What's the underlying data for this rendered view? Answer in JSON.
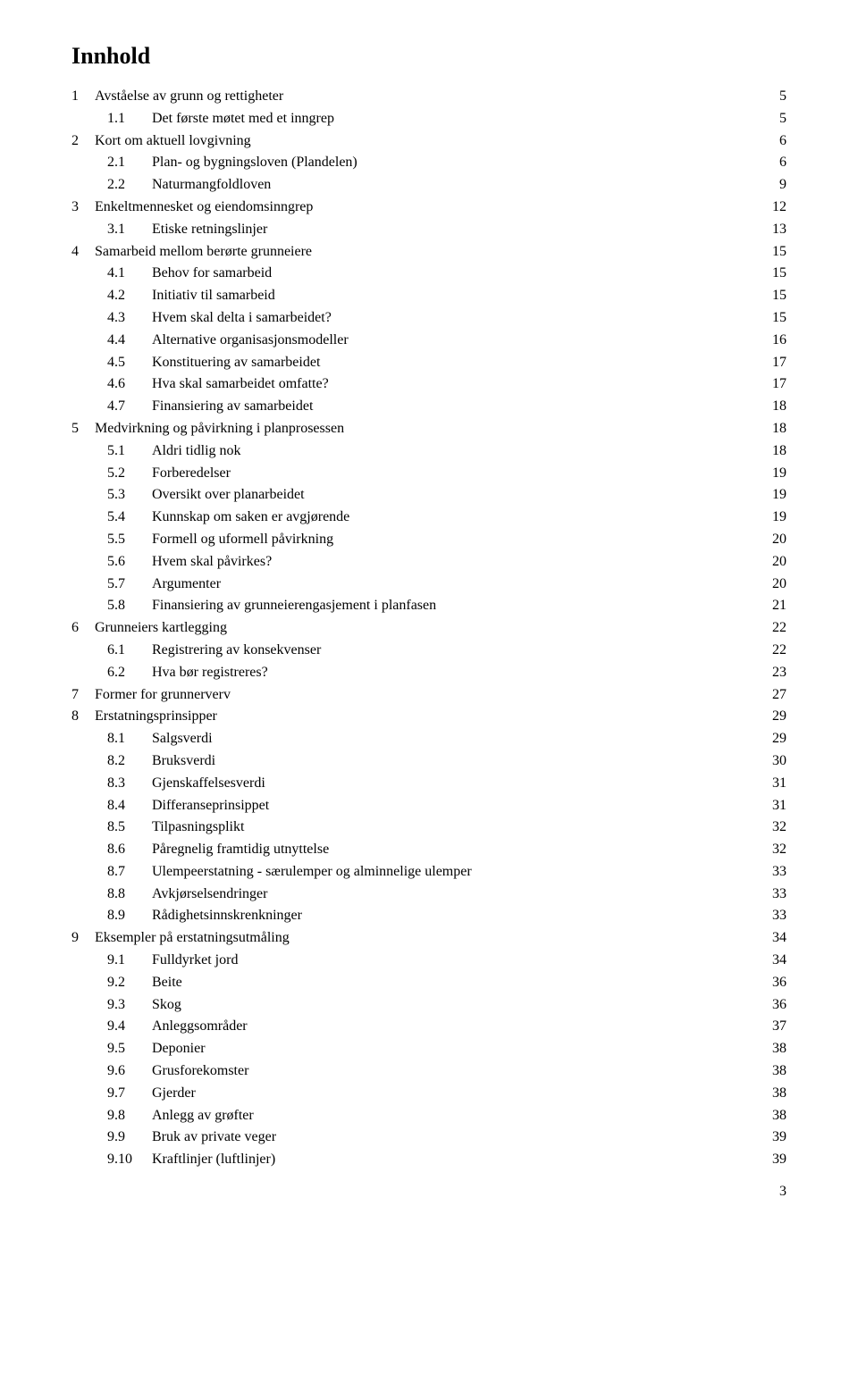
{
  "title": "Innhold",
  "page_number": "3",
  "colors": {
    "text": "#000000",
    "background": "#ffffff"
  },
  "typography": {
    "family": "Times New Roman",
    "title_size_pt": 20,
    "body_size_pt": 12
  },
  "toc": [
    {
      "level": 0,
      "num": "1",
      "label": "Avståelse av grunn og rettigheter",
      "page": "5"
    },
    {
      "level": 1,
      "num": "1.1",
      "label": "Det første møtet med et inngrep",
      "page": "5"
    },
    {
      "level": 0,
      "num": "2",
      "label": "Kort om aktuell lovgivning",
      "page": "6"
    },
    {
      "level": 1,
      "num": "2.1",
      "label": "Plan- og bygningsloven (Plandelen)",
      "page": "6"
    },
    {
      "level": 1,
      "num": "2.2",
      "label": "Naturmangfoldloven",
      "page": "9"
    },
    {
      "level": 0,
      "num": "3",
      "label": "Enkeltmennesket og eiendomsinngrep",
      "page": "12"
    },
    {
      "level": 1,
      "num": "3.1",
      "label": "Etiske retningslinjer",
      "page": "13"
    },
    {
      "level": 0,
      "num": "4",
      "label": "Samarbeid mellom berørte grunneiere",
      "page": "15"
    },
    {
      "level": 1,
      "num": "4.1",
      "label": "Behov for samarbeid",
      "page": "15"
    },
    {
      "level": 1,
      "num": "4.2",
      "label": "Initiativ til samarbeid",
      "page": "15"
    },
    {
      "level": 1,
      "num": "4.3",
      "label": "Hvem skal delta i samarbeidet?",
      "page": "15"
    },
    {
      "level": 1,
      "num": "4.4",
      "label": "Alternative organisasjonsmodeller",
      "page": "16"
    },
    {
      "level": 1,
      "num": "4.5",
      "label": "Konstituering av samarbeidet",
      "page": "17"
    },
    {
      "level": 1,
      "num": "4.6",
      "label": "Hva skal samarbeidet omfatte?",
      "page": "17"
    },
    {
      "level": 1,
      "num": "4.7",
      "label": "Finansiering av samarbeidet",
      "page": "18"
    },
    {
      "level": 0,
      "num": "5",
      "label": "Medvirkning og påvirkning i planprosessen",
      "page": "18"
    },
    {
      "level": 1,
      "num": "5.1",
      "label": "Aldri tidlig nok",
      "page": "18"
    },
    {
      "level": 1,
      "num": "5.2",
      "label": "Forberedelser",
      "page": "19"
    },
    {
      "level": 1,
      "num": "5.3",
      "label": "Oversikt over planarbeidet",
      "page": "19"
    },
    {
      "level": 1,
      "num": "5.4",
      "label": "Kunnskap om saken er avgjørende",
      "page": "19"
    },
    {
      "level": 1,
      "num": "5.5",
      "label": "Formell og uformell påvirkning",
      "page": "20"
    },
    {
      "level": 1,
      "num": "5.6",
      "label": "Hvem skal påvirkes?",
      "page": "20"
    },
    {
      "level": 1,
      "num": "5.7",
      "label": "Argumenter",
      "page": "20"
    },
    {
      "level": 1,
      "num": "5.8",
      "label": "Finansiering av grunneierengasjement i planfasen",
      "page": "21"
    },
    {
      "level": 0,
      "num": "6",
      "label": "Grunneiers kartlegging",
      "page": "22"
    },
    {
      "level": 1,
      "num": "6.1",
      "label": "Registrering av konsekvenser",
      "page": "22"
    },
    {
      "level": 1,
      "num": "6.2",
      "label": "Hva bør registreres?",
      "page": "23"
    },
    {
      "level": 0,
      "num": "7",
      "label": "Former for grunnerverv",
      "page": "27"
    },
    {
      "level": 0,
      "num": "8",
      "label": "Erstatningsprinsipper",
      "page": "29"
    },
    {
      "level": 1,
      "num": "8.1",
      "label": "Salgsverdi",
      "page": "29"
    },
    {
      "level": 1,
      "num": "8.2",
      "label": "Bruksverdi",
      "page": "30"
    },
    {
      "level": 1,
      "num": "8.3",
      "label": "Gjenskaffelsesverdi",
      "page": "31"
    },
    {
      "level": 1,
      "num": "8.4",
      "label": "Differanseprinsippet",
      "page": "31"
    },
    {
      "level": 1,
      "num": "8.5",
      "label": "Tilpasningsplikt",
      "page": "32"
    },
    {
      "level": 1,
      "num": "8.6",
      "label": "Påregnelig framtidig utnyttelse",
      "page": "32"
    },
    {
      "level": 1,
      "num": "8.7",
      "label": "Ulempeerstatning - særulemper og alminnelige ulemper",
      "page": "33"
    },
    {
      "level": 1,
      "num": "8.8",
      "label": "Avkjørselsendringer",
      "page": "33"
    },
    {
      "level": 1,
      "num": "8.9",
      "label": "Rådighetsinnskrenkninger",
      "page": "33"
    },
    {
      "level": 0,
      "num": "9",
      "label": "Eksempler på erstatningsutmåling",
      "page": "34"
    },
    {
      "level": 1,
      "num": "9.1",
      "label": "Fulldyrket jord",
      "page": "34"
    },
    {
      "level": 1,
      "num": "9.2",
      "label": "Beite",
      "page": "36"
    },
    {
      "level": 1,
      "num": "9.3",
      "label": "Skog",
      "page": "36"
    },
    {
      "level": 1,
      "num": "9.4",
      "label": "Anleggsområder",
      "page": "37"
    },
    {
      "level": 1,
      "num": "9.5",
      "label": "Deponier",
      "page": "38"
    },
    {
      "level": 1,
      "num": "9.6",
      "label": "Grusforekomster",
      "page": "38"
    },
    {
      "level": 1,
      "num": "9.7",
      "label": "Gjerder",
      "page": "38"
    },
    {
      "level": 1,
      "num": "9.8",
      "label": "Anlegg av grøfter",
      "page": "38"
    },
    {
      "level": 1,
      "num": "9.9",
      "label": "Bruk av private veger",
      "page": "39"
    },
    {
      "level": 1,
      "num": "9.10",
      "label": "Kraftlinjer (luftlinjer)",
      "page": "39"
    }
  ]
}
